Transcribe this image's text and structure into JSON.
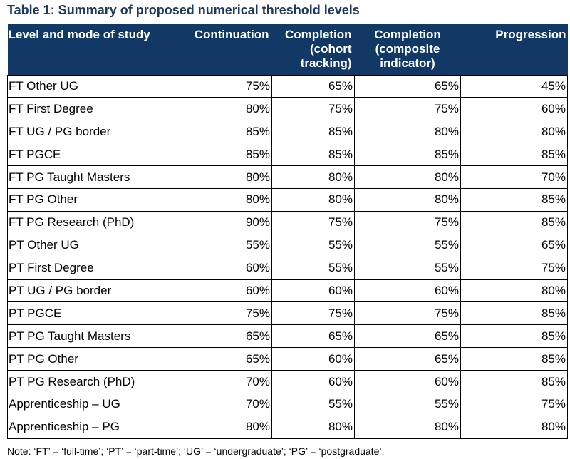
{
  "caption": "Table 1: Summary of proposed numerical threshold levels",
  "headers": {
    "level": "Level and mode of study",
    "continuation": "Continuation",
    "completion_cohort": "Completion (cohort tracking)",
    "completion_composite": "Completion (composite indicator)",
    "progression": "Progression"
  },
  "rows": [
    {
      "level": "FT Other UG",
      "continuation": "75%",
      "completion_cohort": "65%",
      "completion_composite": "65%",
      "progression": "45%"
    },
    {
      "level": "FT First Degree",
      "continuation": "80%",
      "completion_cohort": "75%",
      "completion_composite": "75%",
      "progression": "60%"
    },
    {
      "level": "FT UG / PG border",
      "continuation": "85%",
      "completion_cohort": "85%",
      "completion_composite": "80%",
      "progression": "80%"
    },
    {
      "level": "FT PGCE",
      "continuation": "85%",
      "completion_cohort": "85%",
      "completion_composite": "85%",
      "progression": "85%"
    },
    {
      "level": "FT PG Taught Masters",
      "continuation": "80%",
      "completion_cohort": "80%",
      "completion_composite": "80%",
      "progression": "70%"
    },
    {
      "level": "FT PG Other",
      "continuation": "80%",
      "completion_cohort": "80%",
      "completion_composite": "80%",
      "progression": "85%"
    },
    {
      "level": "FT PG Research (PhD)",
      "continuation": "90%",
      "completion_cohort": "75%",
      "completion_composite": "75%",
      "progression": "85%"
    },
    {
      "level": "PT Other UG",
      "continuation": "55%",
      "completion_cohort": "55%",
      "completion_composite": "55%",
      "progression": "65%"
    },
    {
      "level": "PT First Degree",
      "continuation": "60%",
      "completion_cohort": "55%",
      "completion_composite": "55%",
      "progression": "75%"
    },
    {
      "level": "PT UG / PG border",
      "continuation": "60%",
      "completion_cohort": "60%",
      "completion_composite": "60%",
      "progression": "80%"
    },
    {
      "level": "PT PGCE",
      "continuation": "75%",
      "completion_cohort": "75%",
      "completion_composite": "75%",
      "progression": "85%"
    },
    {
      "level": "PT PG Taught Masters",
      "continuation": "65%",
      "completion_cohort": "65%",
      "completion_composite": "65%",
      "progression": "85%"
    },
    {
      "level": "PT PG Other",
      "continuation": "65%",
      "completion_cohort": "60%",
      "completion_composite": "65%",
      "progression": "85%"
    },
    {
      "level": "PT PG Research (PhD)",
      "continuation": "70%",
      "completion_cohort": "60%",
      "completion_composite": "60%",
      "progression": "85%"
    },
    {
      "level": "Apprenticeship – UG",
      "continuation": "70%",
      "completion_cohort": "55%",
      "completion_composite": "55%",
      "progression": "75%"
    },
    {
      "level": "Apprenticeship – PG",
      "continuation": "80%",
      "completion_cohort": "80%",
      "completion_composite": "80%",
      "progression": "80%"
    }
  ],
  "note": "Note: ‘FT’ = ‘full-time’; ‘PT’ = ‘part-time’; ‘UG’ = ‘undergraduate’; ‘PG’ = ‘postgraduate’.",
  "colors": {
    "caption": "#1f3864",
    "header_bg": "#123866",
    "header_text": "#ffffff"
  }
}
